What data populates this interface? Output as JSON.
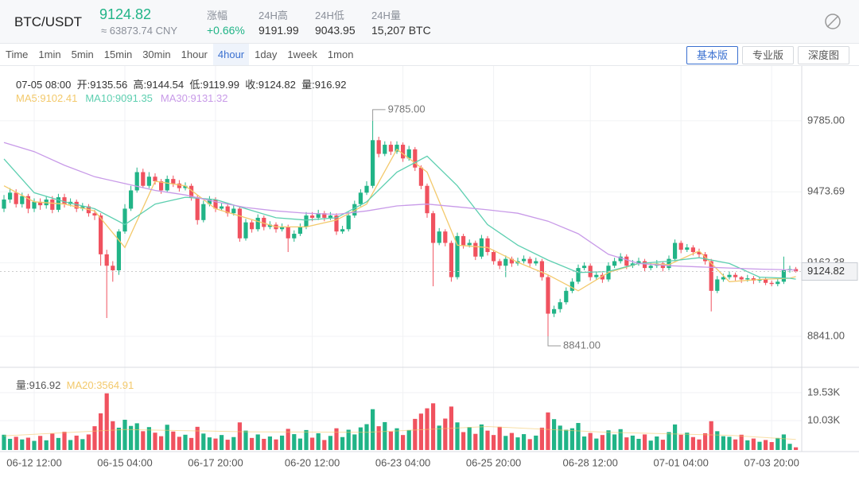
{
  "header": {
    "pair": "BTC/USDT",
    "cny": "≈ 63873.74 CNY",
    "change_label": "涨幅",
    "change": "+0.66%",
    "high_label": "24H高",
    "high": "9191.99",
    "low_label": "24H低",
    "low": "9043.95",
    "vol_label": "24H量",
    "vol": "15,207 BTC"
  },
  "tabs": [
    "Time",
    "1min",
    "5min",
    "15min",
    "30min",
    "1hour",
    "4hour",
    "1day",
    "1week",
    "1mon"
  ],
  "active_tab": 6,
  "modes": [
    "基本版",
    "专业版",
    "深度图"
  ],
  "active_mode": 0,
  "chart_data": {
    "type": "candlestick",
    "up_color": "#21b487",
    "down_color": "#f0525f",
    "grid": true,
    "info": {
      "time": "07-05 08:00",
      "open": "开:",
      "high": "高:",
      "low": "低:",
      "close": "收:",
      "volume": "量:"
    },
    "open": [
      9400,
      9440,
      9470,
      9420,
      9455,
      9400,
      9430,
      9415,
      9440,
      9395,
      9450,
      9420,
      9430,
      9400,
      9410,
      9380,
      9370,
      9200,
      9150,
      9130,
      9300,
      9400,
      9480,
      9560,
      9500,
      9540,
      9520,
      9480,
      9530,
      9510,
      9490,
      9500,
      9450,
      9350,
      9420,
      9440,
      9400,
      9410,
      9380,
      9400,
      9270,
      9340,
      9310,
      9360,
      9320,
      9330,
      9310,
      9320,
      9270,
      9290,
      9320,
      9370,
      9360,
      9380,
      9360,
      9370,
      9300,
      9310,
      9370,
      9420,
      9470,
      9500,
      9700,
      9640,
      9680,
      9650,
      9680,
      9620,
      9660,
      9580,
      9500,
      9380,
      9250,
      9300,
      9250,
      9100,
      9280,
      9240,
      9250,
      9190,
      9270,
      9210,
      9170,
      9150,
      9180,
      9160,
      9170,
      9180,
      9160,
      9170,
      9100,
      8940,
      8960,
      8990,
      9040,
      9080,
      9140,
      9150,
      9100,
      9110,
      9090,
      9150,
      9170,
      9190,
      9150,
      9160,
      9170,
      9140,
      9150,
      9160,
      9140,
      9180,
      9250,
      9220,
      9230,
      9210,
      9200,
      9170,
      9040,
      9090,
      9100,
      9110,
      9100,
      9090,
      9095,
      9085,
      9090,
      9075,
      9070,
      9080,
      9130,
      9135.56
    ],
    "high": [
      9460,
      9490,
      9485,
      9470,
      9465,
      9445,
      9445,
      9455,
      9455,
      9465,
      9465,
      9445,
      9440,
      9425,
      9420,
      9395,
      9380,
      9220,
      9170,
      9310,
      9420,
      9500,
      9580,
      9575,
      9560,
      9555,
      9530,
      9545,
      9545,
      9525,
      9515,
      9510,
      9460,
      9435,
      9455,
      9450,
      9425,
      9420,
      9415,
      9410,
      9355,
      9350,
      9375,
      9370,
      9345,
      9340,
      9335,
      9330,
      9305,
      9335,
      9385,
      9385,
      9395,
      9390,
      9385,
      9380,
      9325,
      9385,
      9435,
      9485,
      9520,
      9785,
      9715,
      9695,
      9695,
      9695,
      9690,
      9675,
      9670,
      9590,
      9510,
      9390,
      9315,
      9310,
      9260,
      9295,
      9290,
      9265,
      9260,
      9285,
      9280,
      9220,
      9180,
      9195,
      9190,
      9185,
      9195,
      9190,
      9185,
      9180,
      9110,
      8975,
      9005,
      9055,
      9095,
      9155,
      9165,
      9160,
      9125,
      9120,
      9165,
      9185,
      9205,
      9200,
      9175,
      9185,
      9180,
      9165,
      9175,
      9170,
      9195,
      9265,
      9260,
      9245,
      9240,
      9225,
      9210,
      9180,
      9105,
      9115,
      9125,
      9120,
      9105,
      9110,
      9105,
      9100,
      9100,
      9085,
      9095,
      9190,
      9150,
      9144.54
    ],
    "low": [
      9385,
      9425,
      9405,
      9405,
      9380,
      9385,
      9395,
      9400,
      9380,
      9385,
      9405,
      9410,
      9385,
      9390,
      9365,
      9350,
      9150,
      8921,
      9080,
      9110,
      9290,
      9390,
      9470,
      9490,
      9490,
      9505,
      9465,
      9470,
      9495,
      9475,
      9480,
      9435,
      9330,
      9340,
      9410,
      9385,
      9390,
      9365,
      9370,
      9255,
      9260,
      9295,
      9300,
      9305,
      9310,
      9295,
      9300,
      9210,
      9255,
      9280,
      9310,
      9345,
      9350,
      9345,
      9350,
      9285,
      9290,
      9300,
      9360,
      9410,
      9460,
      9490,
      9625,
      9630,
      9635,
      9640,
      9605,
      9610,
      9565,
      9485,
      9360,
      9060,
      9240,
      9235,
      9080,
      9090,
      9225,
      9230,
      9175,
      9180,
      9195,
      9155,
      9135,
      9100,
      9145,
      9150,
      9160,
      9145,
      9150,
      9085,
      8841,
      8925,
      8945,
      8980,
      9030,
      9070,
      9130,
      9085,
      9090,
      9075,
      9080,
      9140,
      9160,
      9135,
      9140,
      9150,
      9125,
      9130,
      9140,
      9125,
      9130,
      9170,
      9205,
      9210,
      9195,
      9185,
      9155,
      8950,
      9030,
      9080,
      9090,
      9085,
      9075,
      9080,
      9070,
      9075,
      9065,
      9060,
      9060,
      9070,
      9120,
      9119.99
    ],
    "close": [
      9440,
      9470,
      9420,
      9455,
      9400,
      9430,
      9415,
      9440,
      9395,
      9450,
      9420,
      9430,
      9400,
      9410,
      9380,
      9370,
      9200,
      9150,
      9130,
      9300,
      9400,
      9480,
      9560,
      9500,
      9540,
      9520,
      9480,
      9530,
      9510,
      9490,
      9500,
      9450,
      9350,
      9420,
      9440,
      9400,
      9410,
      9380,
      9400,
      9270,
      9340,
      9310,
      9360,
      9320,
      9330,
      9310,
      9320,
      9270,
      9290,
      9320,
      9370,
      9360,
      9380,
      9360,
      9370,
      9300,
      9310,
      9370,
      9420,
      9470,
      9500,
      9700,
      9640,
      9680,
      9650,
      9680,
      9620,
      9660,
      9580,
      9500,
      9380,
      9250,
      9300,
      9250,
      9100,
      9280,
      9240,
      9250,
      9190,
      9270,
      9210,
      9170,
      9150,
      9180,
      9160,
      9170,
      9180,
      9160,
      9170,
      9100,
      8940,
      8960,
      8990,
      9040,
      9080,
      9140,
      9150,
      9100,
      9110,
      9090,
      9150,
      9170,
      9190,
      9150,
      9160,
      9170,
      9140,
      9150,
      9160,
      9140,
      9180,
      9250,
      9220,
      9230,
      9210,
      9200,
      9170,
      9040,
      9090,
      9100,
      9110,
      9100,
      9090,
      9095,
      9085,
      9090,
      9075,
      9070,
      9080,
      9130,
      9135.56,
      9124.82
    ],
    "volume": [
      5200,
      3800,
      4500,
      3600,
      4200,
      3100,
      4800,
      3300,
      5600,
      4100,
      6200,
      3400,
      4900,
      3700,
      5300,
      8100,
      12500,
      19300,
      9800,
      7600,
      10300,
      8200,
      9100,
      6400,
      7800,
      5900,
      4700,
      8600,
      6300,
      4500,
      5200,
      4100,
      7900,
      5600,
      4300,
      3900,
      5100,
      3500,
      4400,
      9400,
      6600,
      4100,
      5300,
      3800,
      4600,
      3600,
      4900,
      7200,
      5400,
      3900,
      6800,
      4200,
      5700,
      3400,
      4800,
      7400,
      4400,
      6900,
      5300,
      7700,
      8800,
      13900,
      8100,
      9500,
      6300,
      7400,
      5100,
      6800,
      10600,
      12400,
      14200,
      15900,
      8300,
      10700,
      14800,
      9400,
      6100,
      7800,
      5500,
      8700,
      6600,
      5100,
      7900,
      4800,
      5800,
      4300,
      5400,
      3700,
      4900,
      7600,
      12800,
      10500,
      8300,
      6900,
      7400,
      9200,
      4600,
      5800,
      3900,
      5100,
      6700,
      5300,
      7100,
      4300,
      4900,
      3800,
      5300,
      3200,
      4600,
      3500,
      6100,
      8700,
      5200,
      5900,
      4400,
      3600,
      5700,
      9800,
      6400,
      4700,
      4500,
      3600,
      5200,
      3300,
      3900,
      2800,
      3400,
      2700,
      4100,
      5300,
      2100,
      916.92
    ],
    "xticks": [
      {
        "value": 5,
        "label": "06-12 12:00"
      },
      {
        "value": 20,
        "label": "06-15 04:00"
      },
      {
        "value": 35,
        "label": "06-17 20:00"
      },
      {
        "value": 51,
        "label": "06-20 12:00"
      },
      {
        "value": 66,
        "label": "06-23 04:00"
      },
      {
        "value": 81,
        "label": "06-25 20:00"
      },
      {
        "value": 97,
        "label": "06-28 12:00"
      },
      {
        "value": 112,
        "label": "07-01 04:00"
      },
      {
        "value": 127,
        "label": "07-03 20:00"
      }
    ],
    "ylim": [
      8712,
      10018
    ],
    "yticks": [
      {
        "value": 9785,
        "label": "9785.00"
      },
      {
        "value": 9473.69,
        "label": "9473.69"
      },
      {
        "value": 9162.38,
        "label": "9162.38"
      },
      {
        "value": 8841,
        "label": "8841.00"
      }
    ],
    "volume_ylim": [
      0,
      26000
    ],
    "volume_yticks": [
      {
        "value": 19530,
        "label": "19.53K"
      },
      {
        "value": 10030,
        "label": "10.03K"
      }
    ],
    "ma_lines": [
      {
        "label": "MA5:9102.41",
        "color": "#f3c96b",
        "x": [
          0,
          5,
          10,
          15,
          20,
          25,
          30,
          35,
          40,
          45,
          50,
          55,
          60,
          65,
          70,
          75,
          80,
          85,
          90,
          95,
          100,
          105,
          110,
          115,
          120,
          125,
          130,
          131
        ],
        "values": [
          9500,
          9430,
          9420,
          9390,
          9230,
          9520,
          9500,
          9400,
          9360,
          9320,
          9320,
          9350,
          9420,
          9660,
          9560,
          9240,
          9230,
          9165,
          9110,
          9040,
          9120,
          9160,
          9155,
          9215,
          9080,
          9090,
          9095,
          9102.41
        ]
      },
      {
        "label": "MA10:9091.35",
        "color": "#5dcfb0",
        "x": [
          0,
          5,
          10,
          15,
          20,
          25,
          30,
          35,
          40,
          45,
          50,
          55,
          60,
          65,
          70,
          75,
          80,
          85,
          90,
          95,
          100,
          105,
          110,
          115,
          120,
          125,
          130,
          131
        ],
        "values": [
          9618,
          9470,
          9430,
          9400,
          9330,
          9420,
          9450,
          9440,
          9400,
          9360,
          9350,
          9360,
          9430,
          9560,
          9630,
          9500,
          9330,
          9240,
          9175,
          9120,
          9125,
          9160,
          9170,
          9185,
          9160,
          9100,
          9095,
          9091.35
        ]
      },
      {
        "label": "MA30:9131.32",
        "color": "#c89ae8",
        "x": [
          0,
          5,
          10,
          15,
          20,
          25,
          30,
          35,
          40,
          45,
          50,
          55,
          60,
          65,
          70,
          75,
          80,
          85,
          90,
          95,
          100,
          105,
          110,
          115,
          120,
          125,
          130,
          131
        ],
        "values": [
          9690,
          9650,
          9590,
          9540,
          9510,
          9480,
          9460,
          9430,
          9405,
          9390,
          9380,
          9375,
          9390,
          9412,
          9420,
          9408,
          9395,
          9380,
          9345,
          9290,
          9200,
          9160,
          9150,
          9145,
          9140,
          9135,
          9132,
          9131.32
        ]
      }
    ],
    "volume_ma": {
      "label": "MA20:3564.91",
      "color": "#f3c96b",
      "x": [
        0,
        20,
        40,
        60,
        80,
        100,
        120,
        131
      ],
      "values": [
        4800,
        7000,
        6200,
        6000,
        8000,
        6000,
        5000,
        3564.91
      ]
    },
    "annotations": [
      {
        "x": 61,
        "value": 9785,
        "label": "9785.00"
      },
      {
        "x": 90,
        "value": 8841,
        "label": "8841.00"
      }
    ]
  }
}
